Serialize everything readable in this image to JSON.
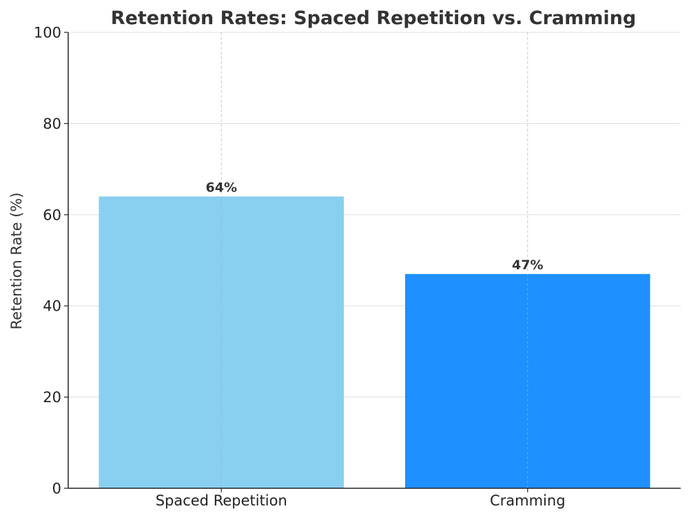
{
  "chart_data": {
    "type": "bar",
    "title": "Retention Rates: Spaced Repetition vs. Cramming",
    "xlabel": "",
    "ylabel": "Retention Rate (%)",
    "categories": [
      "Spaced Repetition",
      "Cramming"
    ],
    "values": [
      64,
      47
    ],
    "value_labels": [
      "64%",
      "47%"
    ],
    "bar_colors": [
      "#89CFF0",
      "#1E90FF"
    ],
    "ylim": [
      0,
      100
    ],
    "yticks": [
      "0",
      "20",
      "40",
      "60",
      "80",
      "100"
    ],
    "grid": true,
    "legend": "none"
  }
}
